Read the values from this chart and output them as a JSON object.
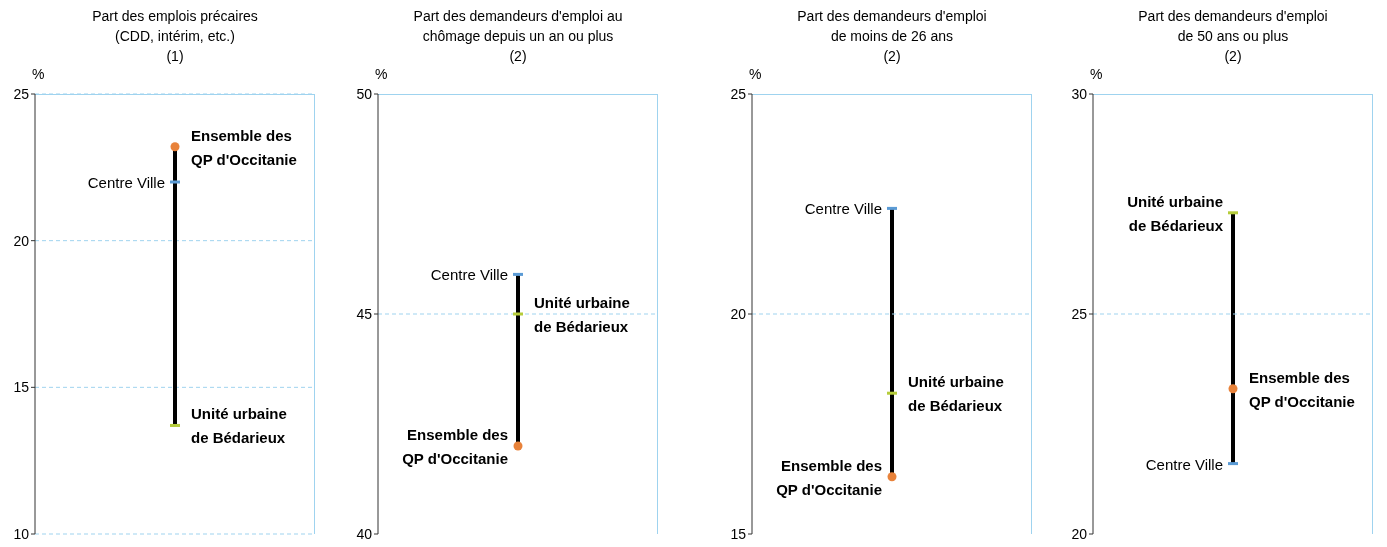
{
  "chart_data": [
    {
      "type": "scatter",
      "title": "Part des emplois précaires\n(CDD, intérim, etc.)\n(1)",
      "ylabel": "%",
      "categories": [
        null
      ],
      "ylim": [
        10,
        25
      ],
      "yticks": [
        10,
        15,
        20,
        25
      ],
      "grid": "y",
      "series": [
        {
          "type": "bar",
          "color": "#000000",
          "base": [
            23.2
          ],
          "values": [
            -9.5
          ]
        },
        {
          "name": "Centre Ville",
          "color": "#5b9bd5",
          "values": [
            22.0
          ]
        },
        {
          "name": "Unité urbaine\nde Bédarieux",
          "color": "#b5cc3a",
          "values": [
            13.7
          ]
        },
        {
          "name": "Ensemble des\nQP d'Occitanie",
          "color": "#e8823a",
          "marker": "circle",
          "values": [
            23.2
          ]
        }
      ]
    },
    {
      "type": "scatter",
      "title": "Part des demandeurs d'emploi au\nchômage depuis un an ou plus\n(2)",
      "ylabel": "%",
      "categories": [
        null
      ],
      "ylim": [
        40,
        50
      ],
      "yticks": [
        40,
        45,
        50
      ],
      "ref_lines": [
        {
          "axis": "y",
          "value": 45,
          "color": "#9fd3ef",
          "line_style": "dashed"
        }
      ],
      "series": [
        {
          "type": "bar",
          "color": "#000000",
          "base": [
            42.0
          ],
          "values": [
            3.9
          ]
        },
        {
          "name": "Centre Ville",
          "color": "#5b9bd5",
          "values": [
            45.9
          ]
        },
        {
          "name": "Unité urbaine\nde Bédarieux",
          "color": "#b5cc3a",
          "values": [
            45.0
          ]
        },
        {
          "name": "Ensemble des\nQP d'Occitanie",
          "color": "#e8823a",
          "marker": "circle",
          "values": [
            42.0
          ]
        }
      ]
    },
    {
      "type": "scatter",
      "title": "Part des demandeurs d'emploi\nde moins de 26 ans\n(2)",
      "ylabel": "%",
      "categories": [
        null
      ],
      "ylim": [
        15,
        25
      ],
      "yticks": [
        15,
        20,
        25
      ],
      "ref_lines": [
        {
          "axis": "y",
          "value": 20,
          "color": "#9fd3ef",
          "line_style": "dashed"
        }
      ],
      "series": [
        {
          "type": "bar",
          "color": "#000000",
          "base": [
            16.3
          ],
          "values": [
            6.1
          ]
        },
        {
          "name": "Centre Ville",
          "color": "#5b9bd5",
          "values": [
            22.4
          ]
        },
        {
          "name": "Unité urbaine\nde Bédarieux",
          "color": "#b5cc3a",
          "values": [
            18.2
          ]
        },
        {
          "name": "Ensemble des\nQP d'Occitanie",
          "color": "#e8823a",
          "marker": "circle",
          "values": [
            16.3
          ]
        }
      ]
    },
    {
      "type": "scatter",
      "title": "Part des demandeurs d'emploi\nde 50 ans ou plus\n(2)",
      "ylabel": "%",
      "categories": [
        null
      ],
      "ylim": [
        20,
        30
      ],
      "yticks": [
        20,
        25,
        30
      ],
      "ref_lines": [
        {
          "axis": "y",
          "value": 25,
          "color": "#9fd3ef",
          "line_style": "dashed"
        }
      ],
      "series": [
        {
          "type": "bar",
          "color": "#000000",
          "base": [
            21.6
          ],
          "values": [
            5.7
          ]
        },
        {
          "name": "Centre Ville",
          "color": "#5b9bd5",
          "values": [
            21.6
          ]
        },
        {
          "name": "Unité urbaine\nde Bédarieux",
          "color": "#b5cc3a",
          "values": [
            27.3
          ]
        },
        {
          "name": "Ensemble des\nQP d'Occitanie",
          "color": "#e8823a",
          "marker": "circle",
          "values": [
            23.3
          ]
        }
      ]
    }
  ]
}
